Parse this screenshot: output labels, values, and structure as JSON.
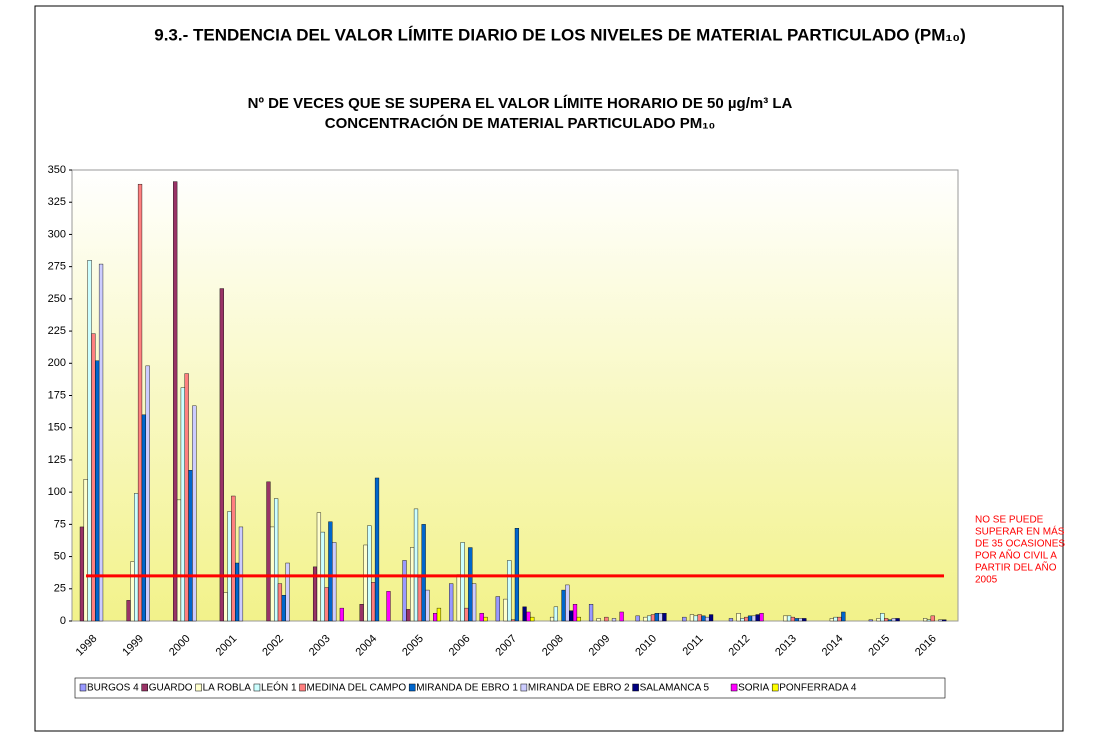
{
  "header": {
    "title": "9.3.- TENDENCIA DEL VALOR LÍMITE DIARIO DE LOS NIVELES DE MATERIAL PARTICULADO (PM₁₀)"
  },
  "chart_data": {
    "type": "bar",
    "title": [
      "Nº DE VECES QUE SE SUPERA EL VALOR LÍMITE HORARIO DE 50 µg/m³ LA",
      "CONCENTRACIÓN DE MATERIAL PARTICULADO PM₁₀"
    ],
    "categories": [
      "1998",
      "1999",
      "2000",
      "2001",
      "2002",
      "2003",
      "2004",
      "2005",
      "2006",
      "2007",
      "2008",
      "2009",
      "2010",
      "2011",
      "2012",
      "2013",
      "2014",
      "2015",
      "2016"
    ],
    "series": [
      {
        "name": "BURGOS 4",
        "color": "#9999ff",
        "values": [
          null,
          null,
          null,
          null,
          null,
          null,
          null,
          47,
          29,
          19,
          null,
          13,
          4,
          3,
          2,
          null,
          null,
          1,
          null
        ]
      },
      {
        "name": "GUARDO",
        "color": "#993366",
        "values": [
          73,
          16,
          341,
          258,
          108,
          42,
          13,
          9,
          null,
          null,
          null,
          null,
          null,
          null,
          null,
          null,
          null,
          null,
          null
        ]
      },
      {
        "name": "LA ROBLA",
        "color": "#ffffcc",
        "values": [
          110,
          46,
          94,
          22,
          73,
          84,
          59,
          57,
          36,
          17,
          3,
          2,
          3,
          5,
          6,
          4,
          2,
          2,
          2
        ]
      },
      {
        "name": "LEÓN 1",
        "color": "#ccffff",
        "values": [
          280,
          99,
          181,
          85,
          95,
          69,
          74,
          87,
          61,
          47,
          11,
          null,
          4,
          4,
          2,
          4,
          3,
          6,
          1
        ]
      },
      {
        "name": "MEDINA DEL CAMPO",
        "color": "#ff8080",
        "values": [
          223,
          339,
          192,
          97,
          29,
          26,
          30,
          34,
          10,
          1,
          null,
          3,
          5,
          5,
          3,
          3,
          3,
          2,
          4
        ]
      },
      {
        "name": "MIRANDA DE EBRO 1",
        "color": "#0066cc",
        "values": [
          202,
          160,
          117,
          45,
          20,
          77,
          111,
          75,
          57,
          72,
          24,
          null,
          6,
          4,
          4,
          2,
          7,
          1,
          null
        ]
      },
      {
        "name": "MIRANDA DE EBRO 2",
        "color": "#ccccff",
        "values": [
          277,
          198,
          167,
          73,
          45,
          61,
          null,
          24,
          29,
          null,
          28,
          2,
          6,
          3,
          4,
          2,
          null,
          2,
          1
        ]
      },
      {
        "name": "SALAMANCA 5",
        "color": "#000080",
        "values": [
          null,
          null,
          null,
          null,
          null,
          null,
          null,
          null,
          null,
          11,
          8,
          null,
          6,
          5,
          5,
          2,
          null,
          2,
          1
        ]
      },
      {
        "name": "SORIA",
        "color": "#ff00ff",
        "values": [
          null,
          null,
          null,
          null,
          null,
          10,
          23,
          6,
          6,
          7,
          13,
          7,
          null,
          null,
          6,
          null,
          null,
          null,
          null
        ]
      },
      {
        "name": "PONFERRADA 4",
        "color": "#ffff00",
        "values": [
          null,
          null,
          null,
          null,
          null,
          null,
          null,
          10,
          3,
          3,
          3,
          null,
          null,
          null,
          null,
          null,
          null,
          null,
          null
        ]
      }
    ],
    "ylim": [
      0,
      350
    ],
    "yticks": [
      0,
      25,
      50,
      75,
      100,
      125,
      150,
      175,
      200,
      225,
      250,
      275,
      300,
      325,
      350
    ],
    "limit_line": {
      "value": 35,
      "color": "#ff0000"
    },
    "annotation": [
      "NO SE PUEDE",
      "SUPERAR EN MÁS",
      "DE  35 OCASIONES",
      "POR AÑO CIVIL A",
      "PARTIR DEL AÑO",
      "2005"
    ]
  }
}
